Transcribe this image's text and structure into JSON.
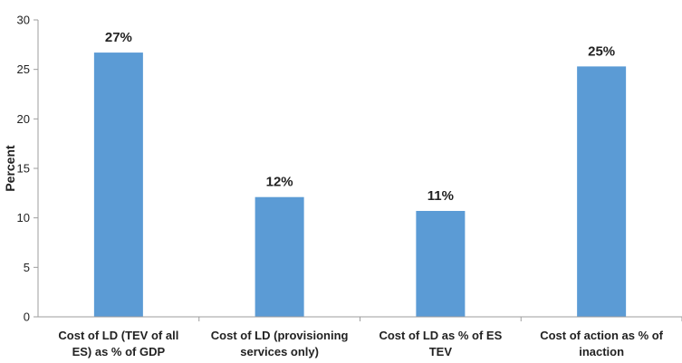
{
  "chart_data": {
    "type": "bar",
    "categories": [
      "Cost of LD (TEV of all ES) as % of GDP",
      "Cost of LD (provisioning services only)",
      "Cost of LD as % of ES TEV",
      "Cost of action as % of inaction"
    ],
    "category_lines": [
      [
        "Cost of LD (TEV of all",
        "ES) as % of GDP"
      ],
      [
        "Cost of LD (provisioning",
        "services only)"
      ],
      [
        "Cost of LD as % of ES",
        "TEV"
      ],
      [
        "Cost of action as % of",
        "inaction"
      ]
    ],
    "values": [
      26.7,
      12.1,
      10.7,
      25.3
    ],
    "data_labels": [
      "27%",
      "12%",
      "11%",
      "25%"
    ],
    "title": "",
    "xlabel": "",
    "ylabel": "Percent",
    "ylim": [
      0,
      30
    ],
    "yticks": [
      0,
      5,
      10,
      15,
      20,
      25,
      30
    ],
    "grid": false,
    "bar_color": "#5b9bd5"
  }
}
